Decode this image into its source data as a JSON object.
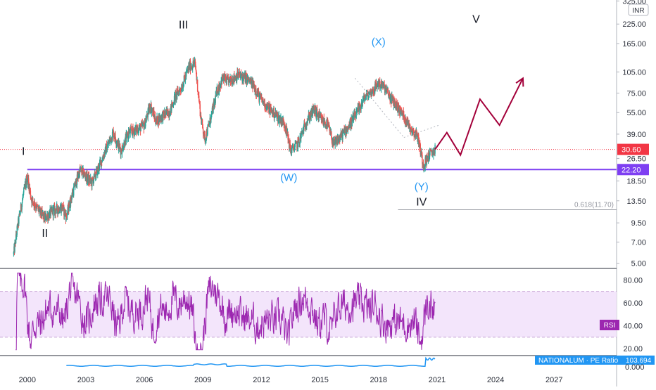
{
  "currency_badge": "INR",
  "colors": {
    "up": "#26a69a",
    "down": "#ef5350",
    "support": "#7e3ff2",
    "rsi": "#9c27b0",
    "rsi_band": "#f3e5fb",
    "pe": "#2196f3",
    "forecast": "#a3003a",
    "wave_black": "#131722",
    "wave_blue": "#2196f3",
    "last_price": "#f23645"
  },
  "chart_data": [
    {
      "type": "candlestick",
      "yscale": "log",
      "ylim": [
        4.6,
        330
      ],
      "xlim": [
        1998.6,
        2030.2
      ],
      "y_ticks": [
        "325.00",
        "225.00",
        "165.00",
        "105.00",
        "75.00",
        "55.00",
        "39.00",
        "26.50",
        "18.50",
        "13.50",
        "9.50",
        "7.00",
        "5.00"
      ],
      "x_ticks": [
        "2000",
        "2003",
        "2006",
        "2009",
        "2012",
        "2015",
        "2018",
        "2021",
        "2024",
        "2027"
      ],
      "last_price": "30.60",
      "support_level": "22.20",
      "fib_label": "0.618(11.70)",
      "fib_level": 11.7,
      "price_path": [
        [
          1999.3,
          5.8
        ],
        [
          1999.5,
          9
        ],
        [
          1999.8,
          15
        ],
        [
          2000.0,
          20
        ],
        [
          2000.2,
          14
        ],
        [
          2000.6,
          11.5
        ],
        [
          2000.9,
          10.2
        ],
        [
          2001.3,
          11.5
        ],
        [
          2001.8,
          12.2
        ],
        [
          2002.0,
          10.5
        ],
        [
          2002.3,
          15
        ],
        [
          2002.7,
          22
        ],
        [
          2003.0,
          20
        ],
        [
          2003.3,
          18
        ],
        [
          2003.6,
          22
        ],
        [
          2004.0,
          30
        ],
        [
          2004.4,
          40
        ],
        [
          2004.8,
          30
        ],
        [
          2005.2,
          40
        ],
        [
          2005.6,
          42
        ],
        [
          2006.0,
          45
        ],
        [
          2006.3,
          62
        ],
        [
          2006.6,
          48
        ],
        [
          2006.9,
          52
        ],
        [
          2007.3,
          56
        ],
        [
          2007.6,
          72
        ],
        [
          2007.9,
          82
        ],
        [
          2008.3,
          115
        ],
        [
          2008.6,
          120
        ],
        [
          2008.9,
          50
        ],
        [
          2009.1,
          36
        ],
        [
          2009.4,
          50
        ],
        [
          2009.7,
          75
        ],
        [
          2010.0,
          95
        ],
        [
          2010.3,
          90
        ],
        [
          2010.8,
          100
        ],
        [
          2011.2,
          95
        ],
        [
          2011.6,
          85
        ],
        [
          2011.9,
          70
        ],
        [
          2012.3,
          60
        ],
        [
          2012.8,
          52
        ],
        [
          2013.2,
          46
        ],
        [
          2013.5,
          30
        ],
        [
          2013.9,
          34
        ],
        [
          2014.3,
          48
        ],
        [
          2014.7,
          58
        ],
        [
          2015.0,
          50
        ],
        [
          2015.4,
          45
        ],
        [
          2015.7,
          33
        ],
        [
          2016.1,
          38
        ],
        [
          2016.5,
          45
        ],
        [
          2016.9,
          55
        ],
        [
          2017.3,
          70
        ],
        [
          2017.7,
          78
        ],
        [
          2018.0,
          88
        ],
        [
          2018.3,
          82
        ],
        [
          2018.6,
          70
        ],
        [
          2018.9,
          62
        ],
        [
          2019.3,
          52
        ],
        [
          2019.7,
          42
        ],
        [
          2020.0,
          38
        ],
        [
          2020.3,
          24
        ],
        [
          2020.6,
          28
        ],
        [
          2020.9,
          30.6
        ]
      ],
      "forecast_path": [
        [
          2020.9,
          30.6
        ],
        [
          2021.5,
          40
        ],
        [
          2022.2,
          28
        ],
        [
          2023.2,
          68
        ],
        [
          2024.2,
          45
        ],
        [
          2025.4,
          95
        ]
      ],
      "wave_labels": [
        {
          "text": "I",
          "x": 1999.8,
          "y": 28,
          "color": "black"
        },
        {
          "text": "II",
          "x": 2000.9,
          "y": 7.6,
          "color": "black"
        },
        {
          "text": "III",
          "x": 2008.0,
          "y": 210,
          "color": "black"
        },
        {
          "text": "(W)",
          "x": 2013.4,
          "y": 18.5,
          "color": "blue"
        },
        {
          "text": "(X)",
          "x": 2018.0,
          "y": 160,
          "color": "blue"
        },
        {
          "text": "(Y)",
          "x": 2020.2,
          "y": 16.0,
          "color": "blue"
        },
        {
          "text": "IV",
          "x": 2020.2,
          "y": 12.5,
          "color": "black"
        },
        {
          "text": "V",
          "x": 2023.0,
          "y": 230,
          "color": "black"
        }
      ]
    },
    {
      "type": "line",
      "name": "RSI",
      "ylim": [
        14,
        90
      ],
      "band": [
        30,
        70
      ],
      "y_ticks": [
        "80.00",
        "60.00",
        "40.00",
        "20.00"
      ],
      "badge": "RSI"
    },
    {
      "type": "area",
      "name": "NATIONALUM · PE Ratio",
      "last_value": "103.694",
      "y_ticks": [
        "0.000"
      ]
    }
  ]
}
